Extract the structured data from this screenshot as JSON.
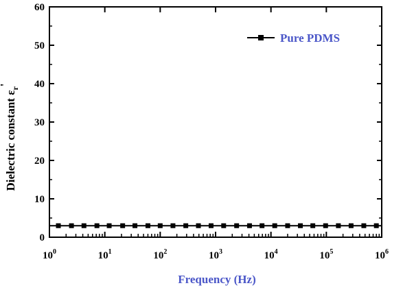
{
  "chart_data": {
    "type": "line",
    "title": "",
    "xlabel": "Frequency (Hz)",
    "ylabel": "Dielectric constant",
    "ylabel_symbol": "ε",
    "ylabel_subscript": "r",
    "ylabel_prime": "'",
    "x_scale": "log",
    "xlim": [
      1,
      1000000
    ],
    "ylim": [
      0,
      60
    ],
    "x_ticks": [
      {
        "value": 1,
        "base": "10",
        "exp": "0"
      },
      {
        "value": 10,
        "base": "10",
        "exp": "1"
      },
      {
        "value": 100,
        "base": "10",
        "exp": "2"
      },
      {
        "value": 1000,
        "base": "10",
        "exp": "3"
      },
      {
        "value": 10000,
        "base": "10",
        "exp": "4"
      },
      {
        "value": 100000,
        "base": "10",
        "exp": "5"
      },
      {
        "value": 1000000,
        "base": "10",
        "exp": "6"
      }
    ],
    "y_ticks": [
      0,
      10,
      20,
      30,
      40,
      50,
      60
    ],
    "grid": false,
    "legend": {
      "placement": "top-right"
    },
    "series": [
      {
        "name": "Pure PDMS",
        "color": "#000000",
        "marker": "square",
        "x": [
          1.45,
          2.5,
          4.2,
          7.2,
          12,
          21,
          35,
          60,
          100,
          170,
          290,
          490,
          830,
          1400,
          2400,
          4100,
          6900,
          11700,
          20000,
          34000,
          57000,
          97000,
          165000,
          280000,
          475000,
          800000
        ],
        "y": [
          3,
          3,
          3,
          3,
          3,
          3,
          3,
          3,
          3,
          3,
          3,
          3,
          3,
          3,
          3,
          3,
          3,
          3,
          3,
          3,
          3,
          3,
          3,
          3,
          3,
          3
        ]
      }
    ]
  },
  "colors": {
    "axis": "#000000",
    "xlabel": "#4a56c8",
    "legend_text": "#4a56c8",
    "ylabel": "#000000"
  }
}
